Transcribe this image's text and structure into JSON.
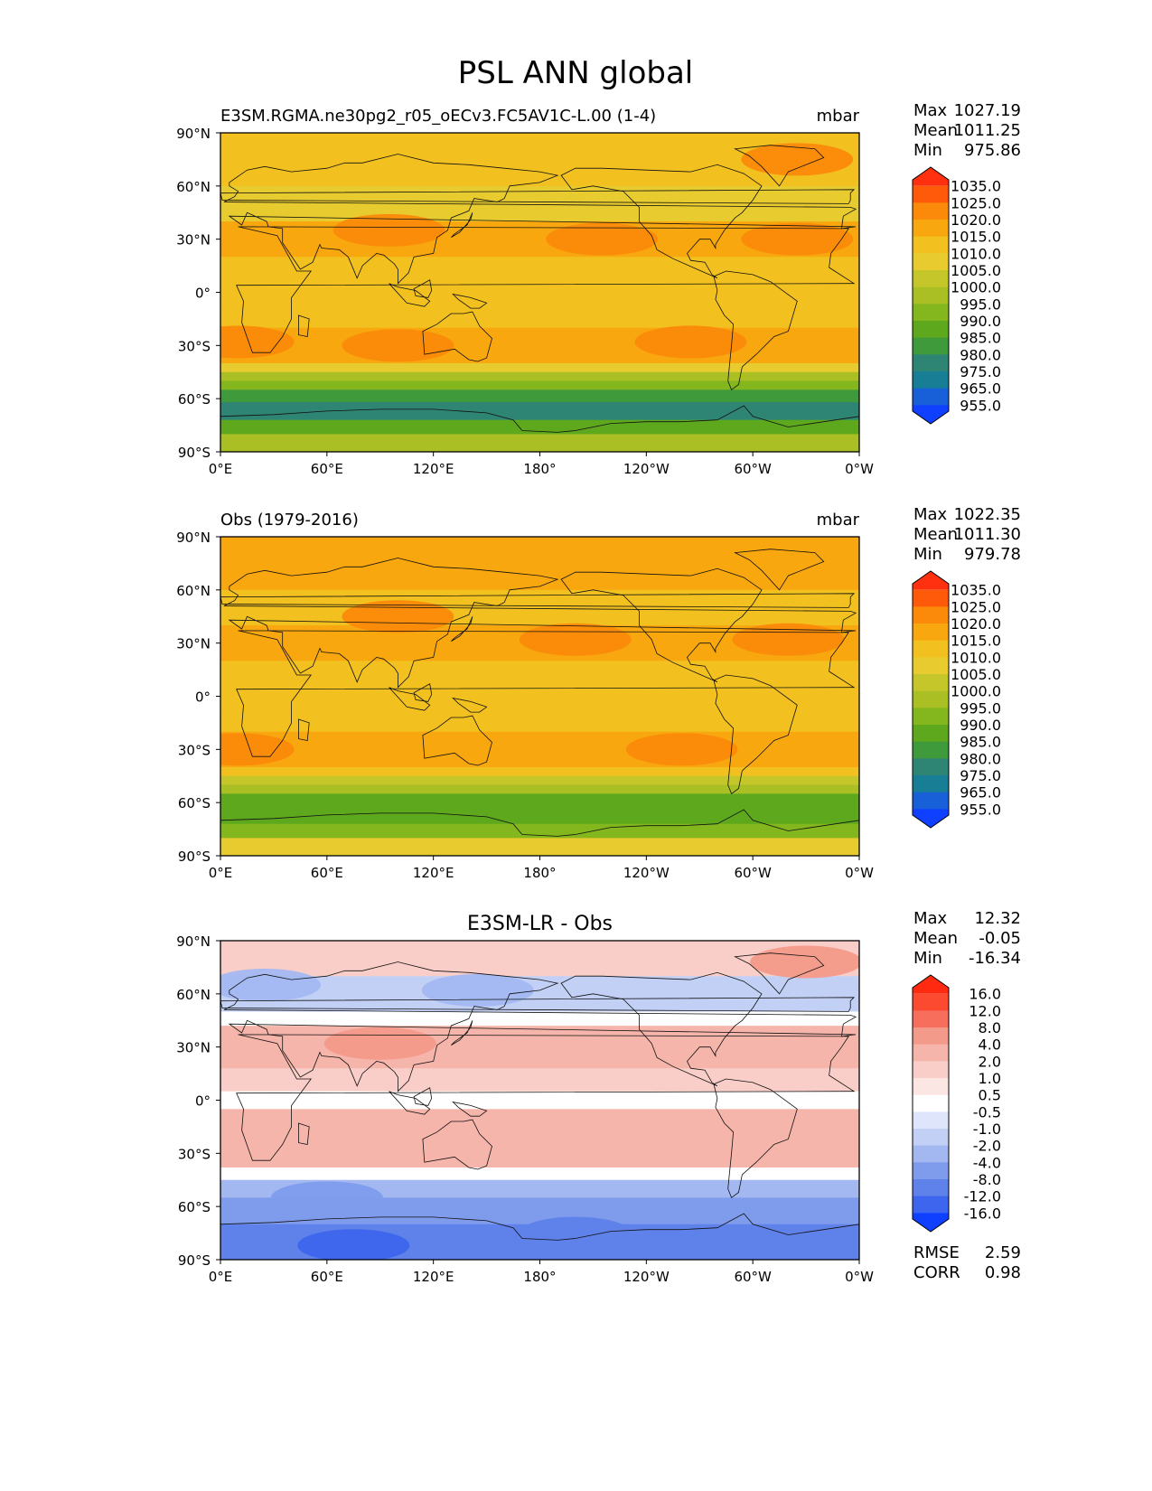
{
  "title": "PSL ANN global",
  "chart_data": [
    {
      "type": "heatmap",
      "title": "E3SM.RGMA.ne30pg2_r05_oECv3.FC5AV1C-L.00 (1-4)",
      "units": "mbar",
      "variable": "PSL",
      "xticks": [
        "0°E",
        "60°E",
        "120°E",
        "180°",
        "120°W",
        "60°W",
        "0°W"
      ],
      "yticks": [
        "90°N",
        "60°N",
        "30°N",
        "0°",
        "30°S",
        "60°S",
        "90°S"
      ],
      "xlim": [
        0,
        360
      ],
      "ylim": [
        -90,
        90
      ],
      "stats": [
        {
          "label": "Max",
          "value": "1027.19"
        },
        {
          "label": "Mean",
          "value": "1011.25"
        },
        {
          "label": "Min",
          "value": "975.86"
        }
      ],
      "colorbar": {
        "levels": [
          "1035.0",
          "1025.0",
          "1020.0",
          "1015.0",
          "1010.0",
          "1005.0",
          "1000.0",
          "995.0",
          "990.0",
          "985.0",
          "980.0",
          "975.0",
          "965.0",
          "955.0"
        ],
        "colors": [
          "#ff3010",
          "#ff5a0a",
          "#fb8a0a",
          "#f9a70f",
          "#f2c11f",
          "#e7cb2f",
          "#c4c62a",
          "#a9bf24",
          "#84b61d",
          "#5ea81d",
          "#3f9a3c",
          "#2f8573",
          "#177e96",
          "#1760d8",
          "#1040ff"
        ]
      },
      "bands": [
        {
          "lat": [
            60,
            90
          ],
          "value": "1012.5"
        },
        {
          "lat": [
            40,
            60
          ],
          "value": "1007.5"
        },
        {
          "lat": [
            20,
            40
          ],
          "value": "1017.5"
        },
        {
          "lat": [
            0,
            20
          ],
          "value": "1012.5"
        },
        {
          "lat": [
            -10,
            0
          ],
          "value": "1010.0"
        },
        {
          "lat": [
            -20,
            -10
          ],
          "value": "1012.5"
        },
        {
          "lat": [
            -40,
            -20
          ],
          "value": "1015.0"
        },
        {
          "lat": [
            -45,
            -40
          ],
          "value": "1007.5"
        },
        {
          "lat": [
            -50,
            -45
          ],
          "value": "997.5"
        },
        {
          "lat": [
            -55,
            -50
          ],
          "value": "990.0"
        },
        {
          "lat": [
            -62,
            -55
          ],
          "value": "982.5"
        },
        {
          "lat": [
            -72,
            -62
          ],
          "value": "977.5"
        },
        {
          "lat": [
            -80,
            -72
          ],
          "value": "987.5"
        },
        {
          "lat": [
            -90,
            -80
          ],
          "value": "997.5"
        }
      ],
      "highs": [
        {
          "lon": 95,
          "lat": 35,
          "value": "1022.5"
        },
        {
          "lon": 215,
          "lat": 30,
          "value": "1022.5"
        },
        {
          "lon": 325,
          "lat": 30,
          "value": "1022.5"
        },
        {
          "lon": 100,
          "lat": -30,
          "value": "1020.0"
        },
        {
          "lon": 265,
          "lat": -28,
          "value": "1020.0"
        },
        {
          "lon": 10,
          "lat": -28,
          "value": "1020.0"
        },
        {
          "lon": 325,
          "lat": 75,
          "value": "1020.0"
        }
      ]
    },
    {
      "type": "heatmap",
      "title": "Obs (1979-2016)",
      "units": "mbar",
      "variable": "PSL",
      "xticks": [
        "0°E",
        "60°E",
        "120°E",
        "180°",
        "120°W",
        "60°W",
        "0°W"
      ],
      "yticks": [
        "90°N",
        "60°N",
        "30°N",
        "0°",
        "30°S",
        "60°S",
        "90°S"
      ],
      "xlim": [
        0,
        360
      ],
      "ylim": [
        -90,
        90
      ],
      "stats": [
        {
          "label": "Max",
          "value": "1022.35"
        },
        {
          "label": "Mean",
          "value": "1011.30"
        },
        {
          "label": "Min",
          "value": "979.78"
        }
      ],
      "colorbar": {
        "levels": [
          "1035.0",
          "1025.0",
          "1020.0",
          "1015.0",
          "1010.0",
          "1005.0",
          "1000.0",
          "995.0",
          "990.0",
          "985.0",
          "980.0",
          "975.0",
          "965.0",
          "955.0"
        ],
        "colors": [
          "#ff3010",
          "#ff5a0a",
          "#fb8a0a",
          "#f9a70f",
          "#f2c11f",
          "#e7cb2f",
          "#c4c62a",
          "#a9bf24",
          "#84b61d",
          "#5ea81d",
          "#3f9a3c",
          "#2f8573",
          "#177e96",
          "#1760d8",
          "#1040ff"
        ]
      },
      "bands": [
        {
          "lat": [
            60,
            90
          ],
          "value": "1015.0"
        },
        {
          "lat": [
            40,
            60
          ],
          "value": "1012.5"
        },
        {
          "lat": [
            20,
            40
          ],
          "value": "1017.5"
        },
        {
          "lat": [
            0,
            20
          ],
          "value": "1012.5"
        },
        {
          "lat": [
            -10,
            0
          ],
          "value": "1010.0"
        },
        {
          "lat": [
            -20,
            -10
          ],
          "value": "1012.5"
        },
        {
          "lat": [
            -40,
            -20
          ],
          "value": "1015.0"
        },
        {
          "lat": [
            -45,
            -40
          ],
          "value": "1010.0"
        },
        {
          "lat": [
            -50,
            -45
          ],
          "value": "1002.5"
        },
        {
          "lat": [
            -55,
            -50
          ],
          "value": "995.0"
        },
        {
          "lat": [
            -62,
            -55
          ],
          "value": "987.5"
        },
        {
          "lat": [
            -72,
            -62
          ],
          "value": "985.0"
        },
        {
          "lat": [
            -80,
            -72
          ],
          "value": "992.5"
        },
        {
          "lat": [
            -90,
            -80
          ],
          "value": "1007.5"
        }
      ],
      "highs": [
        {
          "lon": 200,
          "lat": 32,
          "value": "1022.5"
        },
        {
          "lon": 320,
          "lat": 32,
          "value": "1022.5"
        },
        {
          "lon": 260,
          "lat": -30,
          "value": "1020.0"
        },
        {
          "lon": 10,
          "lat": -30,
          "value": "1020.0"
        },
        {
          "lon": 100,
          "lat": 45,
          "value": "1020.0"
        }
      ]
    },
    {
      "type": "heatmap",
      "title": "E3SM-LR - Obs",
      "units": "",
      "variable": "PSL difference",
      "xticks": [
        "0°E",
        "60°E",
        "120°E",
        "180°",
        "120°W",
        "60°W",
        "0°W"
      ],
      "yticks": [
        "90°N",
        "60°N",
        "30°N",
        "0°",
        "30°S",
        "60°S",
        "90°S"
      ],
      "xlim": [
        0,
        360
      ],
      "ylim": [
        -90,
        90
      ],
      "stats": [
        {
          "label": "Max",
          "value": "12.32"
        },
        {
          "label": "Mean",
          "value": "-0.05"
        },
        {
          "label": "Min",
          "value": "-16.34"
        }
      ],
      "extra_stats": [
        {
          "label": "RMSE",
          "value": "2.59"
        },
        {
          "label": "CORR",
          "value": "0.98"
        }
      ],
      "colorbar": {
        "levels": [
          "16.0",
          "12.0",
          "8.0",
          "4.0",
          "2.0",
          "1.0",
          "0.5",
          "-0.5",
          "-1.0",
          "-2.0",
          "-4.0",
          "-8.0",
          "-12.0",
          "-16.0"
        ],
        "colors": [
          "#ff2a10",
          "#fb4a30",
          "#f76f5c",
          "#f49a8a",
          "#f6b5ab",
          "#f9cec8",
          "#fce6e3",
          "#ffffff",
          "#dfe6fb",
          "#c2d0f6",
          "#a3b8f1",
          "#7f9bec",
          "#5e81ea",
          "#3d65ed",
          "#1040ff"
        ]
      },
      "bands": [
        {
          "lat": [
            70,
            90
          ],
          "value": "1.5"
        },
        {
          "lat": [
            50,
            70
          ],
          "value": "-1.5"
        },
        {
          "lat": [
            42,
            50
          ],
          "value": "0.0"
        },
        {
          "lat": [
            18,
            42
          ],
          "value": "3.0"
        },
        {
          "lat": [
            5,
            18
          ],
          "value": "1.5"
        },
        {
          "lat": [
            -5,
            5
          ],
          "value": "0.0"
        },
        {
          "lat": [
            -38,
            -5
          ],
          "value": "2.0"
        },
        {
          "lat": [
            -45,
            -38
          ],
          "value": "0.0"
        },
        {
          "lat": [
            -55,
            -45
          ],
          "value": "-3.0"
        },
        {
          "lat": [
            -70,
            -55
          ],
          "value": "-6.0"
        },
        {
          "lat": [
            -90,
            -70
          ],
          "value": "-10.0"
        }
      ],
      "highs": [
        {
          "lon": 90,
          "lat": 32,
          "value": "6.0"
        },
        {
          "lon": 140,
          "lat": -28,
          "value": "3.0"
        },
        {
          "lon": 330,
          "lat": 78,
          "value": "6.0"
        },
        {
          "lon": 25,
          "lat": 65,
          "value": "-3.0"
        },
        {
          "lon": 145,
          "lat": 62,
          "value": "-3.0"
        },
        {
          "lon": 60,
          "lat": -55,
          "value": "-6.0"
        },
        {
          "lon": 75,
          "lat": -82,
          "value": "-14.0"
        },
        {
          "lon": 200,
          "lat": -75,
          "value": "-10.0"
        }
      ]
    }
  ]
}
